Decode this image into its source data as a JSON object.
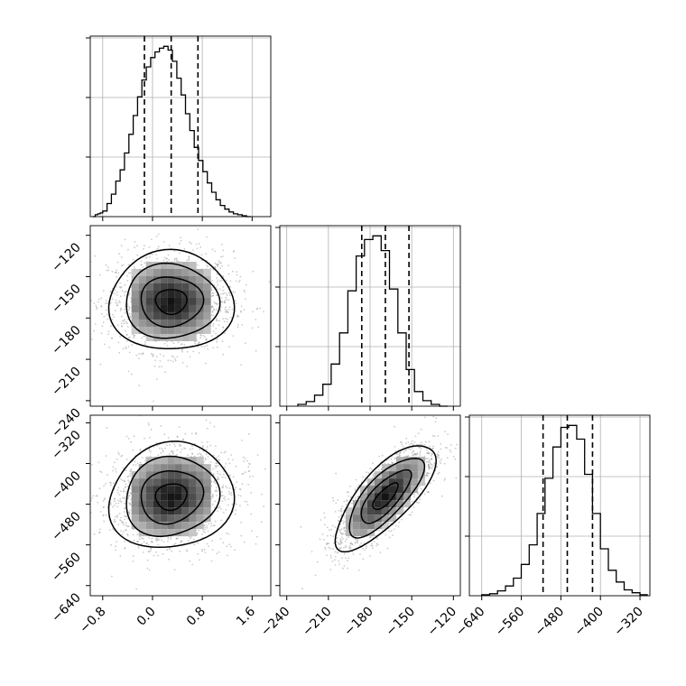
{
  "chart_data": [
    {
      "type": "histogram",
      "panel": "1d-param-1",
      "x_ticks": [
        -0.8,
        0.0,
        0.8,
        1.6
      ],
      "x_tick_labels": [
        "−0.8",
        "0.0",
        "0.8",
        "1.6"
      ],
      "xlim": [
        -1.0,
        1.9
      ],
      "grid": true,
      "quantiles": [
        -0.13,
        0.3,
        0.73
      ],
      "bin_edges": [
        -0.96,
        -0.92,
        -0.88,
        -0.84,
        -0.8,
        -0.73,
        -0.66,
        -0.59,
        -0.52,
        -0.45,
        -0.38,
        -0.31,
        -0.24,
        -0.17,
        -0.1,
        -0.03,
        0.04,
        0.11,
        0.18,
        0.25,
        0.32,
        0.39,
        0.46,
        0.53,
        0.6,
        0.67,
        0.74,
        0.81,
        0.88,
        0.95,
        1.02,
        1.09,
        1.16,
        1.23,
        1.3,
        1.37,
        1.44,
        1.51,
        1.58
      ],
      "counts": [
        0,
        2,
        3,
        4,
        6,
        14,
        24,
        38,
        50,
        68,
        88,
        108,
        128,
        146,
        160,
        170,
        176,
        180,
        182,
        178,
        166,
        148,
        130,
        110,
        92,
        74,
        60,
        48,
        36,
        26,
        18,
        12,
        8,
        5,
        3,
        2,
        1,
        0
      ]
    },
    {
      "type": "2d-density",
      "panel": "param-1-vs-param-2",
      "x_ticks": [
        -0.8,
        0.0,
        0.8,
        1.6
      ],
      "y_ticks": [
        -120,
        -150,
        -180,
        -210,
        -240
      ],
      "y_tick_labels": [
        "−120",
        "−150",
        "−180",
        "−210",
        "−240"
      ],
      "xlim": [
        -1.0,
        1.9
      ],
      "ylim": [
        -244,
        -113
      ],
      "center": [
        0.3,
        -168
      ],
      "sigma": [
        0.5,
        18
      ],
      "correlation": 0.0
    },
    {
      "type": "histogram",
      "panel": "1d-param-2",
      "x_ticks": [
        -240,
        -210,
        -180,
        -150,
        -120
      ],
      "x_tick_labels": [
        "−240",
        "−210",
        "−180",
        "−150",
        "−120"
      ],
      "xlim": [
        -245,
        -115
      ],
      "grid": true,
      "quantiles": [
        -186,
        -169,
        -152
      ],
      "bin_edges": [
        -232,
        -226,
        -220,
        -214,
        -208,
        -202,
        -196,
        -190,
        -184,
        -178,
        -172,
        -166,
        -160,
        -154,
        -148,
        -142,
        -136,
        -130,
        -124
      ],
      "counts": [
        2,
        5,
        12,
        24,
        46,
        80,
        126,
        164,
        182,
        186,
        170,
        128,
        80,
        40,
        16,
        6,
        2,
        0
      ]
    },
    {
      "type": "2d-density",
      "panel": "param-1-vs-param-3",
      "x_ticks": [
        -0.8,
        0.0,
        0.8,
        1.6
      ],
      "y_ticks": [
        -320,
        -400,
        -480,
        -560,
        -640
      ],
      "y_tick_labels": [
        "−320",
        "−400",
        "−480",
        "−560",
        "−640"
      ],
      "xlim": [
        -1.0,
        1.9
      ],
      "ylim": [
        -660,
        -305
      ],
      "center": [
        0.3,
        -465
      ],
      "sigma": [
        0.5,
        52
      ],
      "correlation": 0.1
    },
    {
      "type": "2d-density",
      "panel": "param-2-vs-param-3",
      "x_ticks": [
        -240,
        -210,
        -180,
        -150,
        -120
      ],
      "y_ticks": [
        -320,
        -400,
        -480,
        -560,
        -640
      ],
      "xlim": [
        -245,
        -115
      ],
      "ylim": [
        -660,
        -305
      ],
      "center": [
        -169,
        -465
      ],
      "sigma": [
        18,
        52
      ],
      "correlation": 0.75
    },
    {
      "type": "histogram",
      "panel": "1d-param-3",
      "x_ticks": [
        -640,
        -560,
        -480,
        -400,
        -320
      ],
      "x_tick_labels": [
        "−640",
        "−560",
        "−480",
        "−400",
        "−320"
      ],
      "xlim": [
        -665,
        -300
      ],
      "grid": true,
      "quantiles": [
        -516,
        -467,
        -416
      ],
      "bin_edges": [
        -640,
        -624,
        -608,
        -592,
        -576,
        -560,
        -544,
        -528,
        -512,
        -496,
        -480,
        -464,
        -448,
        -432,
        -416,
        -400,
        -384,
        -368,
        -352,
        -336,
        -320,
        -304
      ],
      "counts": [
        1,
        2,
        5,
        10,
        18,
        32,
        52,
        84,
        120,
        152,
        172,
        174,
        160,
        124,
        84,
        48,
        26,
        14,
        6,
        3,
        1
      ]
    }
  ]
}
